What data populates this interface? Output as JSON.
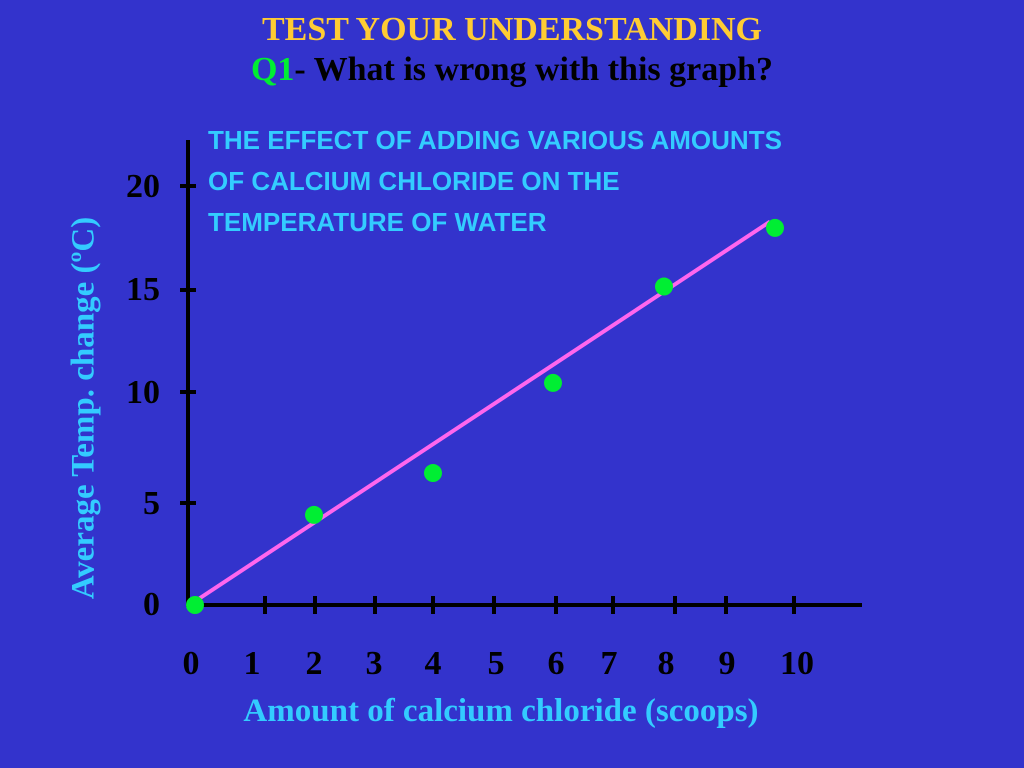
{
  "slide": {
    "heading": "TEST YOUR UNDERSTANDING",
    "question_label": "Q1",
    "question_text": "- What is wrong with this graph?"
  },
  "colors": {
    "background": "#3333cc",
    "heading": "#ffcc33",
    "question_label": "#00ee33",
    "chart_text": "#33ccff",
    "points": "#00ee33",
    "trend_line": "#ff66ee",
    "axes": "#000000"
  },
  "chart_data": {
    "type": "scatter",
    "title_lines": [
      "THE EFFECT OF ADDING VARIOUS AMOUNTS",
      "OF CALCIUM CHLORIDE ON THE",
      "TEMPERATURE OF WATER"
    ],
    "xlabel": "Amount of calcium chloride (scoops)",
    "ylabel": "Average Temp. change (ºC)",
    "x_tick_labels": [
      "0",
      "1",
      "2",
      "3",
      "4",
      "5",
      "6",
      "7",
      "8",
      "9",
      "10"
    ],
    "y_tick_labels": [
      "0",
      "5",
      "10",
      "15",
      "20"
    ],
    "series": [
      {
        "x": [
          0,
          2,
          4,
          6,
          8,
          10
        ],
        "y": [
          0,
          4.3,
          6.3,
          10.6,
          15.2,
          18.0
        ]
      }
    ],
    "trend_line": {
      "from": [
        0,
        0
      ],
      "to": [
        10,
        18.3
      ]
    },
    "ylim": [
      0,
      22
    ],
    "grid": false,
    "legend": "none"
  }
}
